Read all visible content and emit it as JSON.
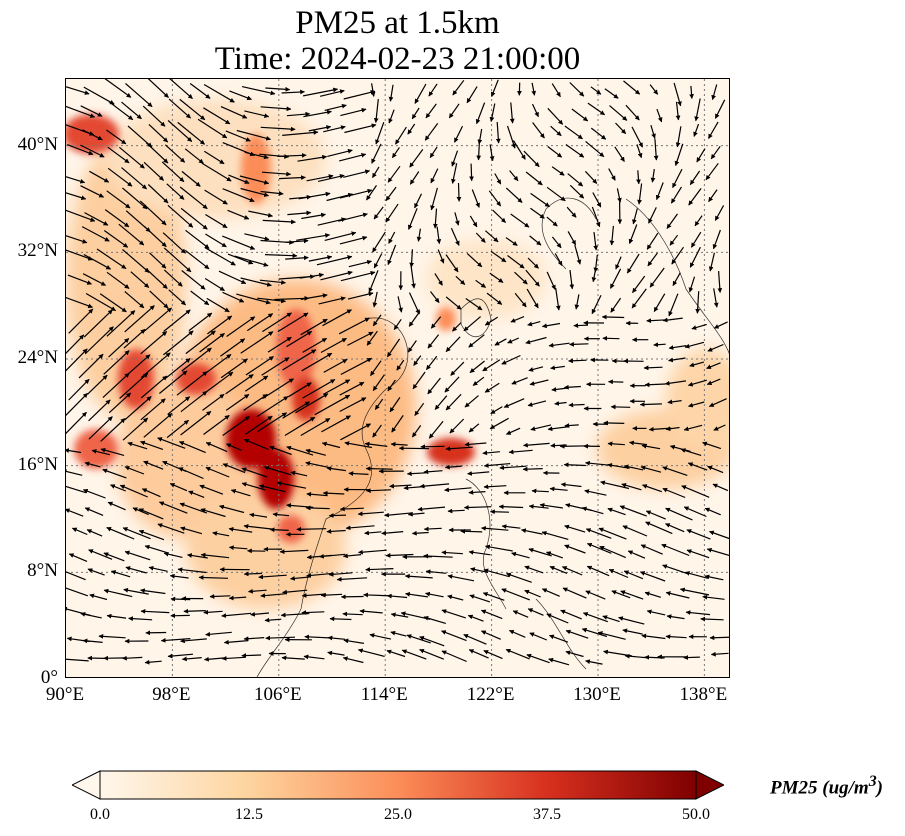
{
  "title": {
    "line1": "PM25 at 1.5km",
    "line2": "Time: 2024-02-23 21:00:00"
  },
  "map": {
    "extent": {
      "lon_min": 90,
      "lon_max": 140,
      "lat_min": 0,
      "lat_max": 45
    },
    "gridlines": "dotted",
    "colormap": "OrRd",
    "lat_ticks": [
      {
        "value": 40,
        "label": "40°N"
      },
      {
        "value": 32,
        "label": "32°N"
      },
      {
        "value": 24,
        "label": "24°N"
      },
      {
        "value": 16,
        "label": "16°N"
      },
      {
        "value": 8,
        "label": "8°N"
      },
      {
        "value": 0,
        "label": "0°"
      }
    ],
    "lon_ticks": [
      {
        "value": 90,
        "label": "90°E"
      },
      {
        "value": 98,
        "label": "98°E"
      },
      {
        "value": 106,
        "label": "106°E"
      },
      {
        "value": 114,
        "label": "114°E"
      },
      {
        "value": 122,
        "label": "122°E"
      },
      {
        "value": 130,
        "label": "130°E"
      },
      {
        "value": 138,
        "label": "138°E"
      }
    ],
    "wind_vectors": "present"
  },
  "colorbar": {
    "label": "PM25 (ug/m",
    "label_superscript": "3",
    "label_close": ")",
    "min": 0,
    "max": 50,
    "extend": "both",
    "ticks": [
      "0.0",
      "12.5",
      "25.0",
      "37.5",
      "50.0"
    ],
    "colors": [
      "#fff7ec",
      "#fdd49e",
      "#fc8d59",
      "#d7301f",
      "#7f0000"
    ]
  }
}
